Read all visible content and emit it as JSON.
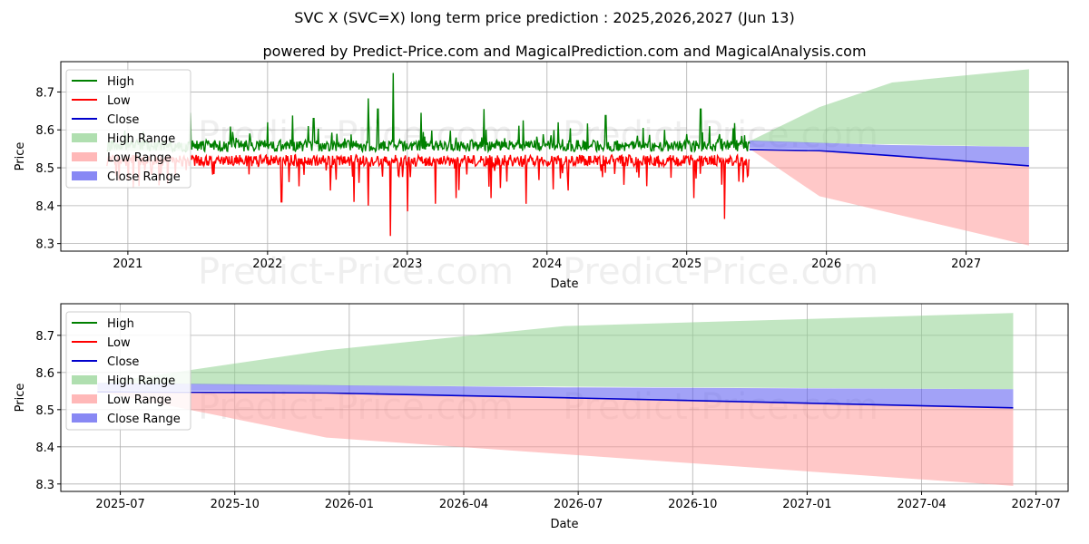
{
  "title": "SVC X (SVC=X) long term price prediction : 2025,2026,2027 (Jun 13)",
  "subtitle": "powered by Predict-Price.com and MagicalPrediction.com and MagicalAnalysis.com",
  "watermark": "Predict-Price.com",
  "colors": {
    "high": "#008000",
    "low": "#ff0000",
    "close": "#0000cc",
    "high_range": "#8fd18f",
    "low_range": "#ff9a9a",
    "close_range": "#5555f0"
  },
  "legend": {
    "position": "top-left",
    "items": [
      {
        "label": "High",
        "kind": "line",
        "color": "#008000"
      },
      {
        "label": "Low",
        "kind": "line",
        "color": "#ff0000"
      },
      {
        "label": "Close",
        "kind": "line",
        "color": "#0000cc"
      },
      {
        "label": "High Range",
        "kind": "patch",
        "color": "#8fd18f"
      },
      {
        "label": "Low Range",
        "kind": "patch",
        "color": "#ff9a9a"
      },
      {
        "label": "Close Range",
        "kind": "patch",
        "color": "#5555f0"
      }
    ]
  },
  "chart_data": [
    {
      "type": "line",
      "name": "top",
      "xlabel": "Date",
      "ylabel": "Price",
      "xlim": [
        2020.52,
        2027.73
      ],
      "ylim": [
        8.28,
        8.78
      ],
      "grid": true,
      "xticks": [
        {
          "v": 2021.0,
          "label": "2021"
        },
        {
          "v": 2022.0,
          "label": "2022"
        },
        {
          "v": 2023.0,
          "label": "2023"
        },
        {
          "v": 2024.0,
          "label": "2024"
        },
        {
          "v": 2025.0,
          "label": "2025"
        },
        {
          "v": 2026.0,
          "label": "2026"
        },
        {
          "v": 2027.0,
          "label": "2027"
        }
      ],
      "yticks": [
        {
          "v": 8.3,
          "label": "8.3"
        },
        {
          "v": 8.4,
          "label": "8.4"
        },
        {
          "v": 8.5,
          "label": "8.5"
        },
        {
          "v": 8.6,
          "label": "8.6"
        },
        {
          "v": 8.7,
          "label": "8.7"
        }
      ],
      "history": {
        "start": 2020.85,
        "end": 2025.45,
        "high_base": 8.552,
        "low_base": 8.525,
        "high_spikes": [
          [
            2021.45,
            8.645
          ],
          [
            2022.0,
            8.62
          ],
          [
            2022.18,
            8.638
          ],
          [
            2022.33,
            8.63
          ],
          [
            2022.72,
            8.683
          ],
          [
            2022.79,
            8.655
          ],
          [
            2022.9,
            8.75
          ],
          [
            2023.1,
            8.645
          ],
          [
            2023.55,
            8.655
          ],
          [
            2023.83,
            8.625
          ],
          [
            2024.08,
            8.62
          ],
          [
            2024.42,
            8.638
          ],
          [
            2025.1,
            8.655
          ]
        ],
        "low_spikes": [
          [
            2022.1,
            8.41
          ],
          [
            2022.45,
            8.44
          ],
          [
            2022.62,
            8.41
          ],
          [
            2022.72,
            8.4
          ],
          [
            2022.88,
            8.32
          ],
          [
            2023.0,
            8.385
          ],
          [
            2023.2,
            8.405
          ],
          [
            2023.35,
            8.42
          ],
          [
            2023.6,
            8.42
          ],
          [
            2023.85,
            8.405
          ],
          [
            2024.15,
            8.44
          ],
          [
            2024.55,
            8.455
          ],
          [
            2025.05,
            8.42
          ],
          [
            2025.27,
            8.365
          ],
          [
            2025.44,
            8.48
          ]
        ]
      },
      "forecast": {
        "x": [
          2025.45,
          2025.95,
          2026.47,
          2027.45
        ],
        "high_range_upper": [
          8.57,
          8.66,
          8.725,
          8.76
        ],
        "high_range_lower": [
          8.57,
          8.565,
          8.562,
          8.555
        ],
        "low_range_upper": [
          8.55,
          8.545,
          8.53,
          8.505
        ],
        "low_range_lower": [
          8.55,
          8.425,
          8.38,
          8.295
        ],
        "close_range_upper": [
          8.572,
          8.566,
          8.56,
          8.555
        ],
        "close_range_lower": [
          8.552,
          8.548,
          8.53,
          8.505
        ],
        "close": [
          8.548,
          8.545,
          8.532,
          8.505
        ]
      }
    },
    {
      "type": "area",
      "name": "bottom",
      "xlabel": "Date",
      "ylabel": "Price",
      "xlim": [
        2025.37,
        2027.57
      ],
      "ylim": [
        8.28,
        8.785
      ],
      "grid": true,
      "xticks": [
        {
          "v": 2025.5,
          "label": "2025-07"
        },
        {
          "v": 2025.75,
          "label": "2025-10"
        },
        {
          "v": 2026.0,
          "label": "2026-01"
        },
        {
          "v": 2026.25,
          "label": "2026-04"
        },
        {
          "v": 2026.5,
          "label": "2026-07"
        },
        {
          "v": 2026.75,
          "label": "2026-10"
        },
        {
          "v": 2027.0,
          "label": "2027-01"
        },
        {
          "v": 2027.25,
          "label": "2027-04"
        },
        {
          "v": 2027.5,
          "label": "2027-07"
        }
      ],
      "yticks": [
        {
          "v": 8.3,
          "label": "8.3"
        },
        {
          "v": 8.4,
          "label": "8.4"
        },
        {
          "v": 8.5,
          "label": "8.5"
        },
        {
          "v": 8.6,
          "label": "8.6"
        },
        {
          "v": 8.7,
          "label": "8.7"
        }
      ],
      "forecast": {
        "x": [
          2025.45,
          2025.95,
          2026.47,
          2027.45
        ],
        "high_range_upper": [
          8.57,
          8.66,
          8.725,
          8.76
        ],
        "high_range_lower": [
          8.57,
          8.565,
          8.562,
          8.555
        ],
        "low_range_upper": [
          8.55,
          8.545,
          8.53,
          8.505
        ],
        "low_range_lower": [
          8.55,
          8.425,
          8.38,
          8.295
        ],
        "close_range_upper": [
          8.572,
          8.566,
          8.56,
          8.555
        ],
        "close_range_lower": [
          8.552,
          8.548,
          8.53,
          8.505
        ],
        "close": [
          8.548,
          8.545,
          8.532,
          8.505
        ]
      }
    }
  ]
}
